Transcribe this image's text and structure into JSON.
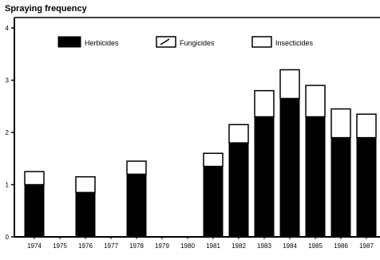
{
  "chart_data": {
    "type": "bar",
    "stacked": true,
    "title": "Spraying frequency",
    "xlabel": "",
    "ylabel": "",
    "categories": [
      "1974",
      "1975",
      "1976",
      "1977",
      "1978",
      "1979",
      "1980",
      "1981",
      "1982",
      "1983",
      "1984",
      "1985",
      "1986",
      "1987"
    ],
    "series": [
      {
        "name": "Herbicides",
        "color": "#000000",
        "values": [
          1.0,
          0.0,
          0.85,
          0.0,
          1.2,
          0.0,
          0.0,
          1.35,
          1.8,
          2.3,
          2.65,
          2.3,
          1.9,
          1.9
        ]
      },
      {
        "name": "Fungicides",
        "color": "#ffffff",
        "values": [
          0.0,
          0.0,
          0.0,
          0.0,
          0.0,
          0.0,
          0.0,
          0.0,
          0.0,
          0.0,
          0.0,
          0.0,
          0.0,
          0.0
        ]
      },
      {
        "name": "Insecticides",
        "color": "#ffffff",
        "values": [
          0.25,
          0.0,
          0.3,
          0.0,
          0.25,
          0.0,
          0.0,
          0.25,
          0.35,
          0.5,
          0.55,
          0.6,
          0.55,
          0.45
        ]
      }
    ],
    "yticks": [
      0,
      1,
      2,
      3,
      4
    ],
    "ylim": [
      0,
      4.2
    ],
    "legend": "top"
  }
}
